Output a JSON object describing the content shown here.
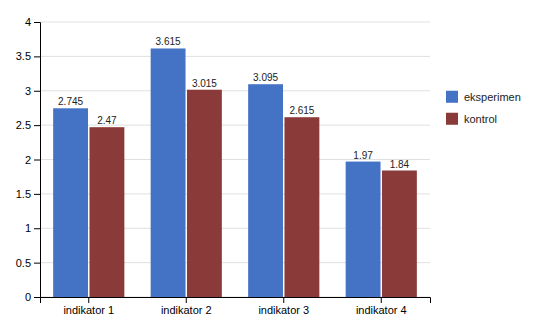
{
  "chart_data": {
    "type": "bar",
    "categories": [
      "indikator 1",
      "indikator 2",
      "indikator 3",
      "indikator 4"
    ],
    "series": [
      {
        "name": "eksperimen",
        "color": "#4472C4",
        "values": [
          2.745,
          3.615,
          3.095,
          1.97
        ]
      },
      {
        "name": "kontrol",
        "color": "#8B3A3A",
        "values": [
          2.47,
          3.015,
          2.615,
          1.84
        ]
      }
    ],
    "ylim": [
      0,
      4
    ],
    "yticks": [
      0,
      0.5,
      1,
      1.5,
      2,
      2.5,
      3,
      3.5,
      4
    ],
    "grid": true,
    "legend": "right",
    "data_labels": true
  }
}
